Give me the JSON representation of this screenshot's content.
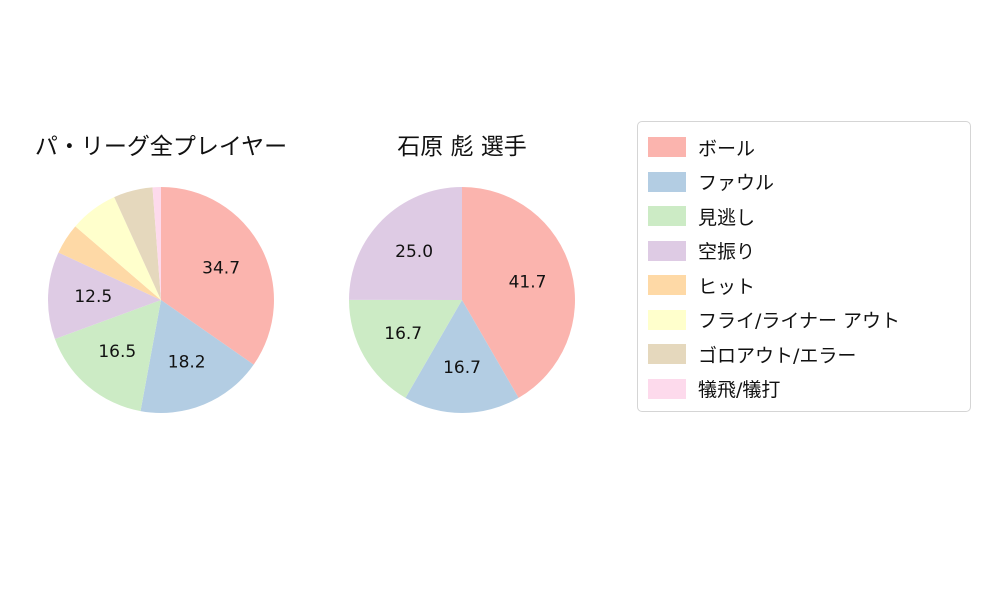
{
  "figure": {
    "background": "#ffffff",
    "text_color": "#111111"
  },
  "chart_data": [
    {
      "type": "pie",
      "title": "パ・リーグ全プレイヤー",
      "labels": [
        "ボール",
        "ファウル",
        "見逃し",
        "空振り",
        "ヒット",
        "フライ/ライナー アウト",
        "ゴロアウト/エラー",
        "犠飛/犠打"
      ],
      "values": [
        34.7,
        18.2,
        16.5,
        12.5,
        4.4,
        6.9,
        5.6,
        1.2
      ],
      "value_labels": [
        "34.7",
        "18.2",
        "16.5",
        "12.5",
        "",
        "",
        "",
        ""
      ],
      "colors": [
        "#fbb4ae",
        "#b3cde3",
        "#ccebc5",
        "#decbe4",
        "#fed9a6",
        "#ffffcc",
        "#e5d8bd",
        "#fddaec"
      ],
      "start_angle_deg": 90,
      "direction": "clockwise",
      "label_distance": 0.6,
      "note": "values for unlabeled small slices estimated from arc angles"
    },
    {
      "type": "pie",
      "title": "石原 彪 選手",
      "labels": [
        "ボール",
        "ファウル",
        "見逃し",
        "空振り",
        "ヒット",
        "フライ/ライナー アウト",
        "ゴロアウト/エラー",
        "犠飛/犠打"
      ],
      "values": [
        41.7,
        16.7,
        16.7,
        25.0,
        0,
        0,
        0,
        0
      ],
      "value_labels": [
        "41.7",
        "16.7",
        "16.7",
        "25.0",
        "",
        "",
        "",
        ""
      ],
      "colors": [
        "#fbb4ae",
        "#b3cde3",
        "#ccebc5",
        "#decbe4",
        "#fed9a6",
        "#ffffcc",
        "#e5d8bd",
        "#fddaec"
      ],
      "start_angle_deg": 90,
      "direction": "clockwise",
      "label_distance": 0.6
    }
  ],
  "legend": {
    "position": "right",
    "items": [
      {
        "label": "ボール",
        "color": "#fbb4ae"
      },
      {
        "label": "ファウル",
        "color": "#b3cde3"
      },
      {
        "label": "見逃し",
        "color": "#ccebc5"
      },
      {
        "label": "空振り",
        "color": "#decbe4"
      },
      {
        "label": "ヒット",
        "color": "#fed9a6"
      },
      {
        "label": "フライ/ライナー アウト",
        "color": "#ffffcc"
      },
      {
        "label": "ゴロアウト/エラー",
        "color": "#e5d8bd"
      },
      {
        "label": "犠飛/犠打",
        "color": "#fddaec"
      }
    ]
  }
}
